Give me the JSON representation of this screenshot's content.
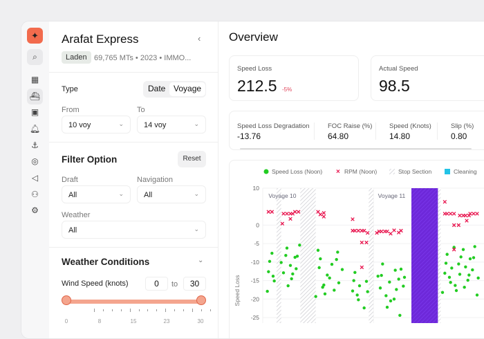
{
  "sidebar": {
    "icons": [
      "sparkle-logo-icon",
      "search-icon",
      "dashboard-icon",
      "ship-icon",
      "document-icon",
      "bell-icon",
      "port-icon",
      "map-icon",
      "megaphone-icon",
      "users-icon",
      "settings-icon"
    ]
  },
  "panel": {
    "title": "Arafat Express",
    "status": "Laden",
    "meta": "69,765 MTs • 2023 • IMMO...",
    "type_label": "Type",
    "type_options": [
      "Date",
      "Voyage"
    ],
    "type_selected": "Voyage",
    "from_label": "From",
    "from_value": "10 voy",
    "to_label": "To",
    "to_value": "14 voy",
    "filter_title": "Filter Option",
    "reset": "Reset",
    "draft_label": "Draft",
    "draft_value": "All",
    "navigation_label": "Navigation",
    "navigation_value": "All",
    "weather_label": "Weather",
    "weather_value": "All",
    "weather_title": "Weather Conditions",
    "wind_label": "Wind Speed (knots)",
    "wind_min": "0",
    "wind_to": "to",
    "wind_max": "30",
    "wind_range": [
      0,
      30
    ],
    "wind_ticks": [
      "0",
      "8",
      "15",
      "23",
      "30"
    ]
  },
  "main": {
    "title": "Overview",
    "cards": [
      {
        "label": "Speed Loss",
        "value": "212.5",
        "delta": "-5%"
      },
      {
        "label": "Actual Speed",
        "value": "98.5"
      }
    ],
    "metrics": [
      {
        "label": "Speed Loss Degradation",
        "value": "-13.76"
      },
      {
        "label": "FOC Raise (%)",
        "value": "64.80"
      },
      {
        "label": "Speed (Knots)",
        "value": "14.80"
      },
      {
        "label": "Slip (%)",
        "value": "0.80"
      }
    ]
  },
  "chart_data": {
    "type": "scatter",
    "ylabel": "Speed Loss",
    "ylim": [
      -25,
      10
    ],
    "xlim": [
      0,
      96
    ],
    "yticks": [
      "10",
      "0",
      "-5",
      "-10",
      "-15",
      "-20",
      "-25"
    ],
    "grid": true,
    "legend_position": "top",
    "legend": [
      "Speed Loss (Noon)",
      "RPM (Noon)",
      "Stop Section",
      "Cleaning"
    ],
    "colors": {
      "speed_loss": "#22cc22",
      "rpm": "#e8164f",
      "cleaning": "#6d28d9",
      "cleaning_legend": "#22c3e6"
    },
    "annotations": [
      {
        "text": "Voyage 10",
        "x": 2.5
      },
      {
        "text": "Voyage 11",
        "x": 50
      }
    ],
    "voyage_dividers": [
      48
    ],
    "stop_sections": [
      [
        6,
        8
      ],
      [
        16.3,
        23
      ],
      [
        46,
        48
      ],
      [
        76,
        77.2
      ]
    ],
    "cleaning_sections": [
      [
        64.5,
        76
      ]
    ],
    "series": [
      {
        "name": "Speed Loss (Noon)",
        "marker": "dot",
        "points": [
          [
            2,
            -17.9
          ],
          [
            2.5,
            -12.6
          ],
          [
            3,
            -9.8
          ],
          [
            4,
            -7.6
          ],
          [
            4.5,
            -13.8
          ],
          [
            5,
            -15.1
          ],
          [
            8,
            -10.1
          ],
          [
            9,
            -12.9
          ],
          [
            10,
            -8.2
          ],
          [
            10.5,
            -6.2
          ],
          [
            11,
            -16.4
          ],
          [
            12,
            -10.9
          ],
          [
            12.5,
            -14.5
          ],
          [
            13,
            -13.2
          ],
          [
            14,
            -8.7
          ],
          [
            14.5,
            -11.8
          ],
          [
            15,
            -8.4
          ],
          [
            16,
            -5.4
          ],
          [
            23,
            -19.3
          ],
          [
            24,
            -6.8
          ],
          [
            24.5,
            -11.5
          ],
          [
            25,
            -9.1
          ],
          [
            26,
            -16.8
          ],
          [
            26.5,
            -16.2
          ],
          [
            27,
            -18.6
          ],
          [
            28,
            -13.5
          ],
          [
            29,
            -14.3
          ],
          [
            30,
            -10.6
          ],
          [
            31,
            -17.6
          ],
          [
            32,
            -9.3
          ],
          [
            32.5,
            -7.3
          ],
          [
            33,
            -15.6
          ],
          [
            34.5,
            -12
          ],
          [
            39,
            -17.8
          ],
          [
            39.5,
            -15
          ],
          [
            40,
            -12.8
          ],
          [
            41,
            -18.9
          ],
          [
            41.5,
            -20.2
          ],
          [
            42,
            -16.4
          ],
          [
            44,
            -22.4
          ],
          [
            45,
            -15.2
          ],
          [
            45.5,
            -18
          ],
          [
            50,
            -13.8
          ],
          [
            51,
            -17
          ],
          [
            51.5,
            -13.6
          ],
          [
            52,
            -10.5
          ],
          [
            53.5,
            -19.1
          ],
          [
            54,
            -22.2
          ],
          [
            55,
            -15.4
          ],
          [
            55.5,
            -20.5
          ],
          [
            57,
            -20
          ],
          [
            57.5,
            -12.2
          ],
          [
            58,
            -17.4
          ],
          [
            59,
            -14.6
          ],
          [
            59.5,
            -24.4
          ],
          [
            60,
            -11.9
          ],
          [
            61,
            -16.5
          ],
          [
            61.5,
            -14.1
          ],
          [
            78,
            -18.2
          ],
          [
            79,
            -13
          ],
          [
            79.5,
            -10.3
          ],
          [
            80,
            -7.9
          ],
          [
            81,
            -14.1
          ],
          [
            81.5,
            -15.5
          ],
          [
            82,
            -11.6
          ],
          [
            83,
            -6
          ],
          [
            83.5,
            -16.3
          ],
          [
            84,
            -17.7
          ],
          [
            85,
            -10.5
          ],
          [
            85.5,
            -13.3
          ],
          [
            86,
            -8.6
          ],
          [
            87,
            -6.6
          ],
          [
            87.5,
            -16.8
          ],
          [
            88,
            -11.3
          ],
          [
            89,
            -14.9
          ],
          [
            89.5,
            -13.5
          ],
          [
            90,
            -9.1
          ],
          [
            91,
            -12.1
          ],
          [
            91.5,
            -8.8
          ],
          [
            92,
            -5.8
          ],
          [
            93,
            -18.9
          ],
          [
            93.5,
            -14.3
          ]
        ]
      },
      {
        "name": "RPM (Noon)",
        "marker": "cross",
        "points": [
          [
            2.5,
            3.6
          ],
          [
            4,
            3.6
          ],
          [
            8.5,
            0.4
          ],
          [
            9,
            3.1
          ],
          [
            10.5,
            3.1
          ],
          [
            12,
            3.1
          ],
          [
            12,
            1.7
          ],
          [
            13,
            3.1
          ],
          [
            14,
            3.6
          ],
          [
            15.5,
            3.6
          ],
          [
            24,
            3.6
          ],
          [
            25,
            2.9
          ],
          [
            26.5,
            3.3
          ],
          [
            26.5,
            2.3
          ],
          [
            39,
            1.6
          ],
          [
            39,
            -1.5
          ],
          [
            40,
            -1.5
          ],
          [
            41.5,
            -1.5
          ],
          [
            43,
            -1.5
          ],
          [
            44,
            -1.5
          ],
          [
            45.5,
            -2.1
          ],
          [
            43,
            -4.7
          ],
          [
            45,
            -4.7
          ],
          [
            43,
            -11.4
          ],
          [
            49.5,
            -2.1
          ],
          [
            50.5,
            -1.7
          ],
          [
            51.5,
            -1.7
          ],
          [
            53,
            -1.7
          ],
          [
            54,
            -1.7
          ],
          [
            55.5,
            -2.3
          ],
          [
            57,
            -1.4
          ],
          [
            59,
            -2
          ],
          [
            60,
            -1.5
          ],
          [
            79,
            6.3
          ],
          [
            79,
            3.1
          ],
          [
            80,
            3.1
          ],
          [
            81.5,
            3.1
          ],
          [
            83,
            3.1
          ],
          [
            83,
            0
          ],
          [
            85,
            0
          ],
          [
            83,
            -6.6
          ],
          [
            85.5,
            2.6
          ],
          [
            87,
            2.6
          ],
          [
            88,
            2.6
          ],
          [
            89.5,
            2.6
          ],
          [
            88.5,
            1.2
          ],
          [
            90,
            3.1
          ],
          [
            91.5,
            3.1
          ],
          [
            93,
            3.1
          ]
        ]
      }
    ]
  }
}
